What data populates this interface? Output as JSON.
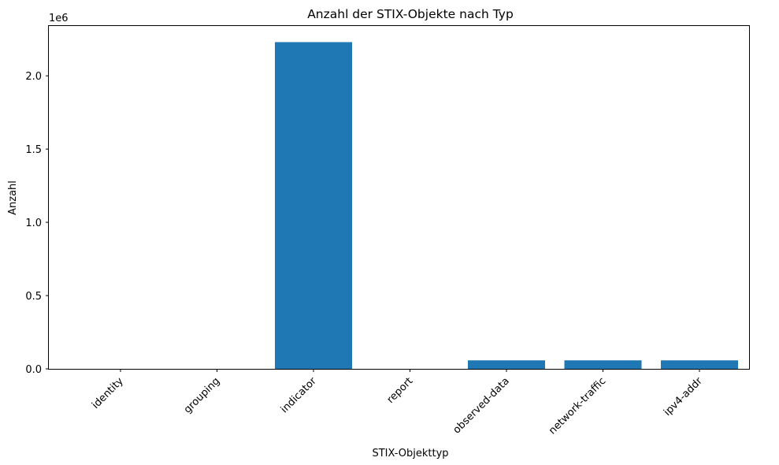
{
  "chart_data": {
    "type": "bar",
    "title": "Anzahl der STIX-Objekte nach Typ",
    "xlabel": "STIX-Objekttyp",
    "ylabel": "Anzahl",
    "offset_label": "1e6",
    "categories": [
      "identity",
      "grouping",
      "indicator",
      "report",
      "observed-data",
      "network-traffic",
      "ipv4-addr"
    ],
    "values": [
      1,
      1,
      2230000,
      1,
      58000,
      58000,
      58000
    ],
    "ylim": [
      0,
      2340000
    ],
    "yticks": [
      0,
      500000,
      1000000,
      1500000,
      2000000
    ],
    "ytick_labels": [
      "0.0",
      "0.5",
      "1.0",
      "1.5",
      "2.0"
    ],
    "bar_color": "#1f77b4",
    "grid": false,
    "legend": "none"
  }
}
